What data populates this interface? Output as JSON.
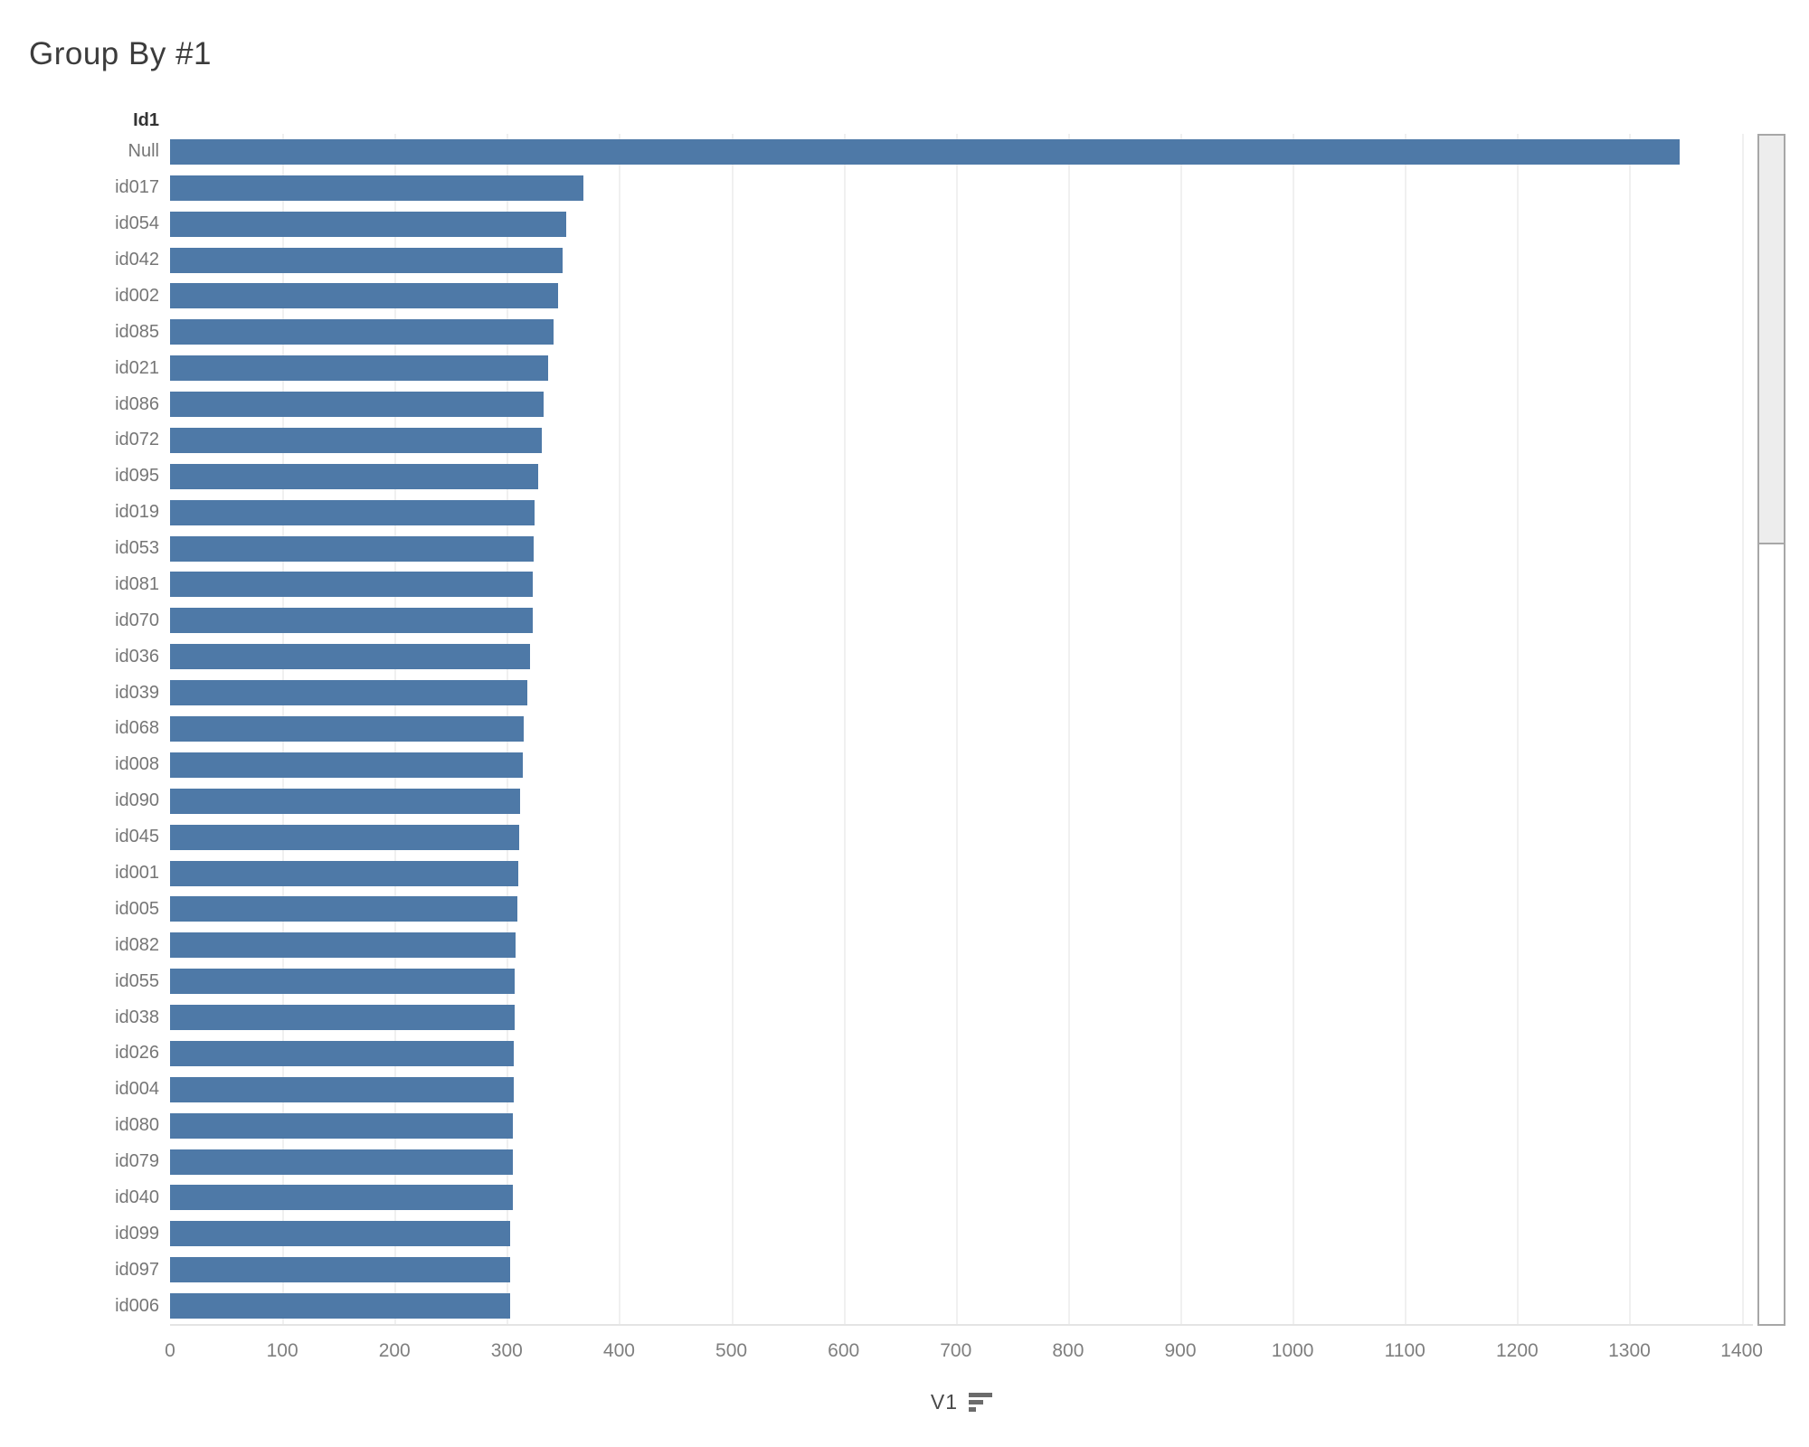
{
  "title": "Group By #1",
  "row_field_header": "Id1",
  "chart_data": {
    "type": "bar",
    "orientation": "horizontal",
    "title": "Group By #1",
    "row_field": "Id1",
    "xlabel": "V1",
    "sort": "descending",
    "bar_color": "#4e79a7",
    "xlim": [
      0,
      1410
    ],
    "xticks": [
      0,
      100,
      200,
      300,
      400,
      500,
      600,
      700,
      800,
      900,
      1000,
      1100,
      1200,
      1300,
      1400
    ],
    "grid": "vertical-only",
    "categories": [
      "Null",
      "id017",
      "id054",
      "id042",
      "id002",
      "id085",
      "id021",
      "id086",
      "id072",
      "id095",
      "id019",
      "id053",
      "id081",
      "id070",
      "id036",
      "id039",
      "id068",
      "id008",
      "id090",
      "id045",
      "id001",
      "id005",
      "id082",
      "id055",
      "id038",
      "id026",
      "id004",
      "id080",
      "id079",
      "id040",
      "id099",
      "id097",
      "id006"
    ],
    "values": [
      1345,
      368,
      353,
      350,
      346,
      342,
      337,
      333,
      331,
      328,
      325,
      324,
      323,
      323,
      321,
      318,
      315,
      314,
      312,
      311,
      310,
      309,
      308,
      307,
      307,
      306,
      306,
      305,
      305,
      305,
      303,
      303,
      303
    ]
  },
  "scrollbar": {
    "thumb_position": "top"
  }
}
